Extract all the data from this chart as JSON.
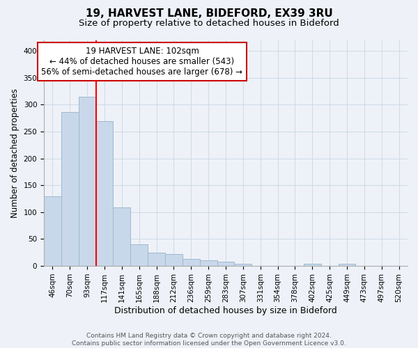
{
  "title": "19, HARVEST LANE, BIDEFORD, EX39 3RU",
  "subtitle": "Size of property relative to detached houses in Bideford",
  "xlabel": "Distribution of detached houses by size in Bideford",
  "ylabel": "Number of detached properties",
  "bar_labels": [
    "46sqm",
    "70sqm",
    "93sqm",
    "117sqm",
    "141sqm",
    "165sqm",
    "188sqm",
    "212sqm",
    "236sqm",
    "259sqm",
    "283sqm",
    "307sqm",
    "331sqm",
    "354sqm",
    "378sqm",
    "402sqm",
    "425sqm",
    "449sqm",
    "473sqm",
    "497sqm",
    "520sqm"
  ],
  "bar_values": [
    130,
    286,
    314,
    269,
    109,
    40,
    25,
    22,
    13,
    10,
    8,
    4,
    0,
    0,
    0,
    4,
    0,
    4,
    0,
    0,
    0
  ],
  "bar_color": "#c8d8ea",
  "bar_edgecolor": "#a0b8cc",
  "vline_x_index": 2,
  "vline_color": "red",
  "annotation_line1": "19 HARVEST LANE: 102sqm",
  "annotation_line2": "← 44% of detached houses are smaller (543)",
  "annotation_line3": "56% of semi-detached houses are larger (678) →",
  "annotation_box_color": "white",
  "annotation_box_edgecolor": "#cc0000",
  "ylim": [
    0,
    420
  ],
  "yticks": [
    0,
    50,
    100,
    150,
    200,
    250,
    300,
    350,
    400
  ],
  "grid_color": "#d0dce8",
  "background_color": "#eef2f8",
  "footer_text": "Contains HM Land Registry data © Crown copyright and database right 2024.\nContains public sector information licensed under the Open Government Licence v3.0.",
  "title_fontsize": 11,
  "subtitle_fontsize": 9.5,
  "xlabel_fontsize": 9,
  "ylabel_fontsize": 8.5,
  "tick_fontsize": 7.5,
  "annotation_fontsize": 8.5,
  "footer_fontsize": 6.5
}
